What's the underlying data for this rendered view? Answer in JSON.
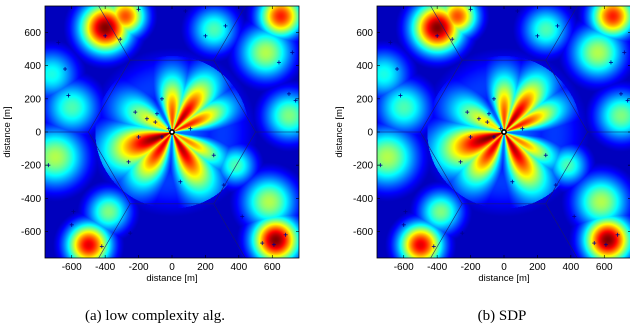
{
  "chart_data": [
    {
      "type": "heatmap",
      "title": "",
      "caption": "(a) low complexity alg.",
      "xlabel": "distance [m]",
      "ylabel": "distance [m]",
      "xlim": [
        -760,
        760
      ],
      "ylim": [
        -760,
        760
      ],
      "xticks": [
        -600,
        -400,
        -200,
        0,
        200,
        400,
        600
      ],
      "yticks": [
        600,
        400,
        200,
        0,
        -200,
        -400,
        -600
      ],
      "colormap": "jet",
      "grid": false,
      "users": [
        [
          -100,
          60
        ],
        [
          -60,
          -30
        ],
        [
          -200,
          -30
        ],
        [
          -150,
          80
        ],
        [
          -260,
          -180
        ],
        [
          -220,
          120
        ],
        [
          -60,
          200
        ],
        [
          -400,
          580
        ],
        [
          -310,
          560
        ],
        [
          -90,
          110
        ],
        [
          -20,
          20
        ],
        [
          200,
          580
        ],
        [
          110,
          20
        ],
        [
          50,
          -300
        ],
        [
          250,
          -140
        ],
        [
          -640,
          380
        ],
        [
          -740,
          -200
        ],
        [
          -590,
          -480
        ],
        [
          -600,
          -560
        ],
        [
          -420,
          -690
        ],
        [
          -250,
          -610
        ],
        [
          310,
          -320
        ],
        [
          420,
          -510
        ],
        [
          540,
          -670
        ],
        [
          610,
          -680
        ],
        [
          680,
          -620
        ],
        [
          740,
          190
        ],
        [
          700,
          230
        ],
        [
          640,
          420
        ],
        [
          720,
          480
        ],
        [
          320,
          640
        ],
        [
          80,
          730
        ],
        [
          -200,
          740
        ],
        [
          -620,
          220
        ],
        [
          -680,
          540
        ]
      ]
    },
    {
      "type": "heatmap",
      "title": "",
      "caption": "(b) SDP",
      "xlabel": "distance [m]",
      "ylabel": "distance [m]",
      "xlim": [
        -760,
        760
      ],
      "ylim": [
        -760,
        760
      ],
      "xticks": [
        -600,
        -400,
        -200,
        0,
        200,
        400,
        600
      ],
      "yticks": [
        600,
        400,
        200,
        0,
        -200,
        -400,
        -600
      ],
      "colormap": "jet",
      "grid": false,
      "users": [
        [
          -100,
          60
        ],
        [
          -60,
          -30
        ],
        [
          -200,
          -30
        ],
        [
          -150,
          80
        ],
        [
          -260,
          -180
        ],
        [
          -220,
          120
        ],
        [
          -60,
          200
        ],
        [
          -400,
          580
        ],
        [
          -310,
          560
        ],
        [
          -90,
          110
        ],
        [
          -20,
          20
        ],
        [
          200,
          580
        ],
        [
          110,
          20
        ],
        [
          50,
          -300
        ],
        [
          250,
          -140
        ],
        [
          -640,
          380
        ],
        [
          -740,
          -200
        ],
        [
          -590,
          -480
        ],
        [
          -600,
          -560
        ],
        [
          -420,
          -690
        ],
        [
          -250,
          -610
        ],
        [
          310,
          -320
        ],
        [
          420,
          -510
        ],
        [
          540,
          -670
        ],
        [
          610,
          -680
        ],
        [
          680,
          -620
        ],
        [
          740,
          190
        ],
        [
          700,
          230
        ],
        [
          640,
          420
        ],
        [
          720,
          480
        ],
        [
          320,
          640
        ],
        [
          80,
          730
        ],
        [
          -200,
          740
        ],
        [
          -620,
          220
        ],
        [
          -680,
          540
        ]
      ]
    }
  ]
}
